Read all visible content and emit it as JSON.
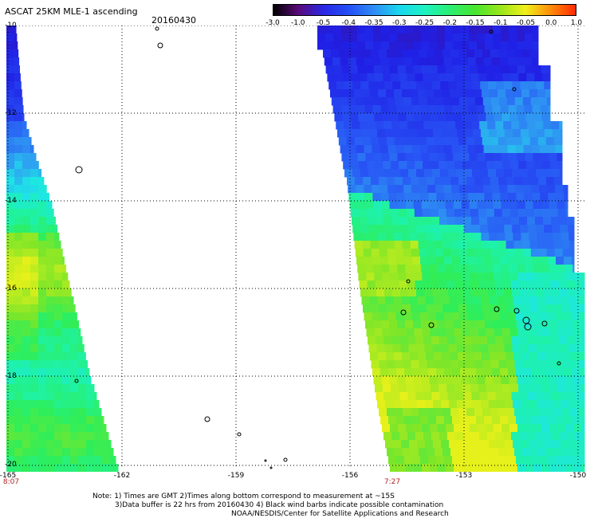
{
  "header": {
    "title": "ASCAT 25KM MLE-1 ascending",
    "date": "20160430"
  },
  "colorbar": {
    "labels": [
      "-3.0",
      "-1.0",
      "-0.5",
      "-0.4",
      "-0.35",
      "-0.3",
      "-0.25",
      "-0.2",
      "-0.15",
      "-0.1",
      "-0.05",
      "0.0",
      "1.0"
    ],
    "colors": [
      "#000000",
      "#5a0a7a",
      "#2828e6",
      "#2350f5",
      "#2f8cf5",
      "#19d7ee",
      "#1cf2c2",
      "#2cee73",
      "#46e62f",
      "#98e61a",
      "#f0f01a",
      "#ff8c0a",
      "#ff2a00"
    ]
  },
  "axes": {
    "y_labels": [
      "-10",
      "-12",
      "-14",
      "-16",
      "-18",
      "-20"
    ],
    "x_labels": [
      "-165",
      "-162",
      "-159",
      "-156",
      "-153",
      "-150"
    ],
    "time_labels": [
      "8:07",
      "7:27"
    ]
  },
  "notes": {
    "line1": "Note: 1) Times are GMT 2)Times along bottom correspond to measurement at ~15S",
    "line2": "3)Data buffer is 22 hrs from 20160430 4) Black wind barbs indicate possible contamination",
    "line3": "NOAA/NESDIS/Center for Satellite Applications and Research"
  },
  "map": {
    "lon_range": [
      -165,
      -150
    ],
    "lat_range": [
      -20,
      -10
    ],
    "swath_west_color_scale": "blue to green/yellow",
    "swath_east_color_scale": "blue to green/cyan"
  }
}
